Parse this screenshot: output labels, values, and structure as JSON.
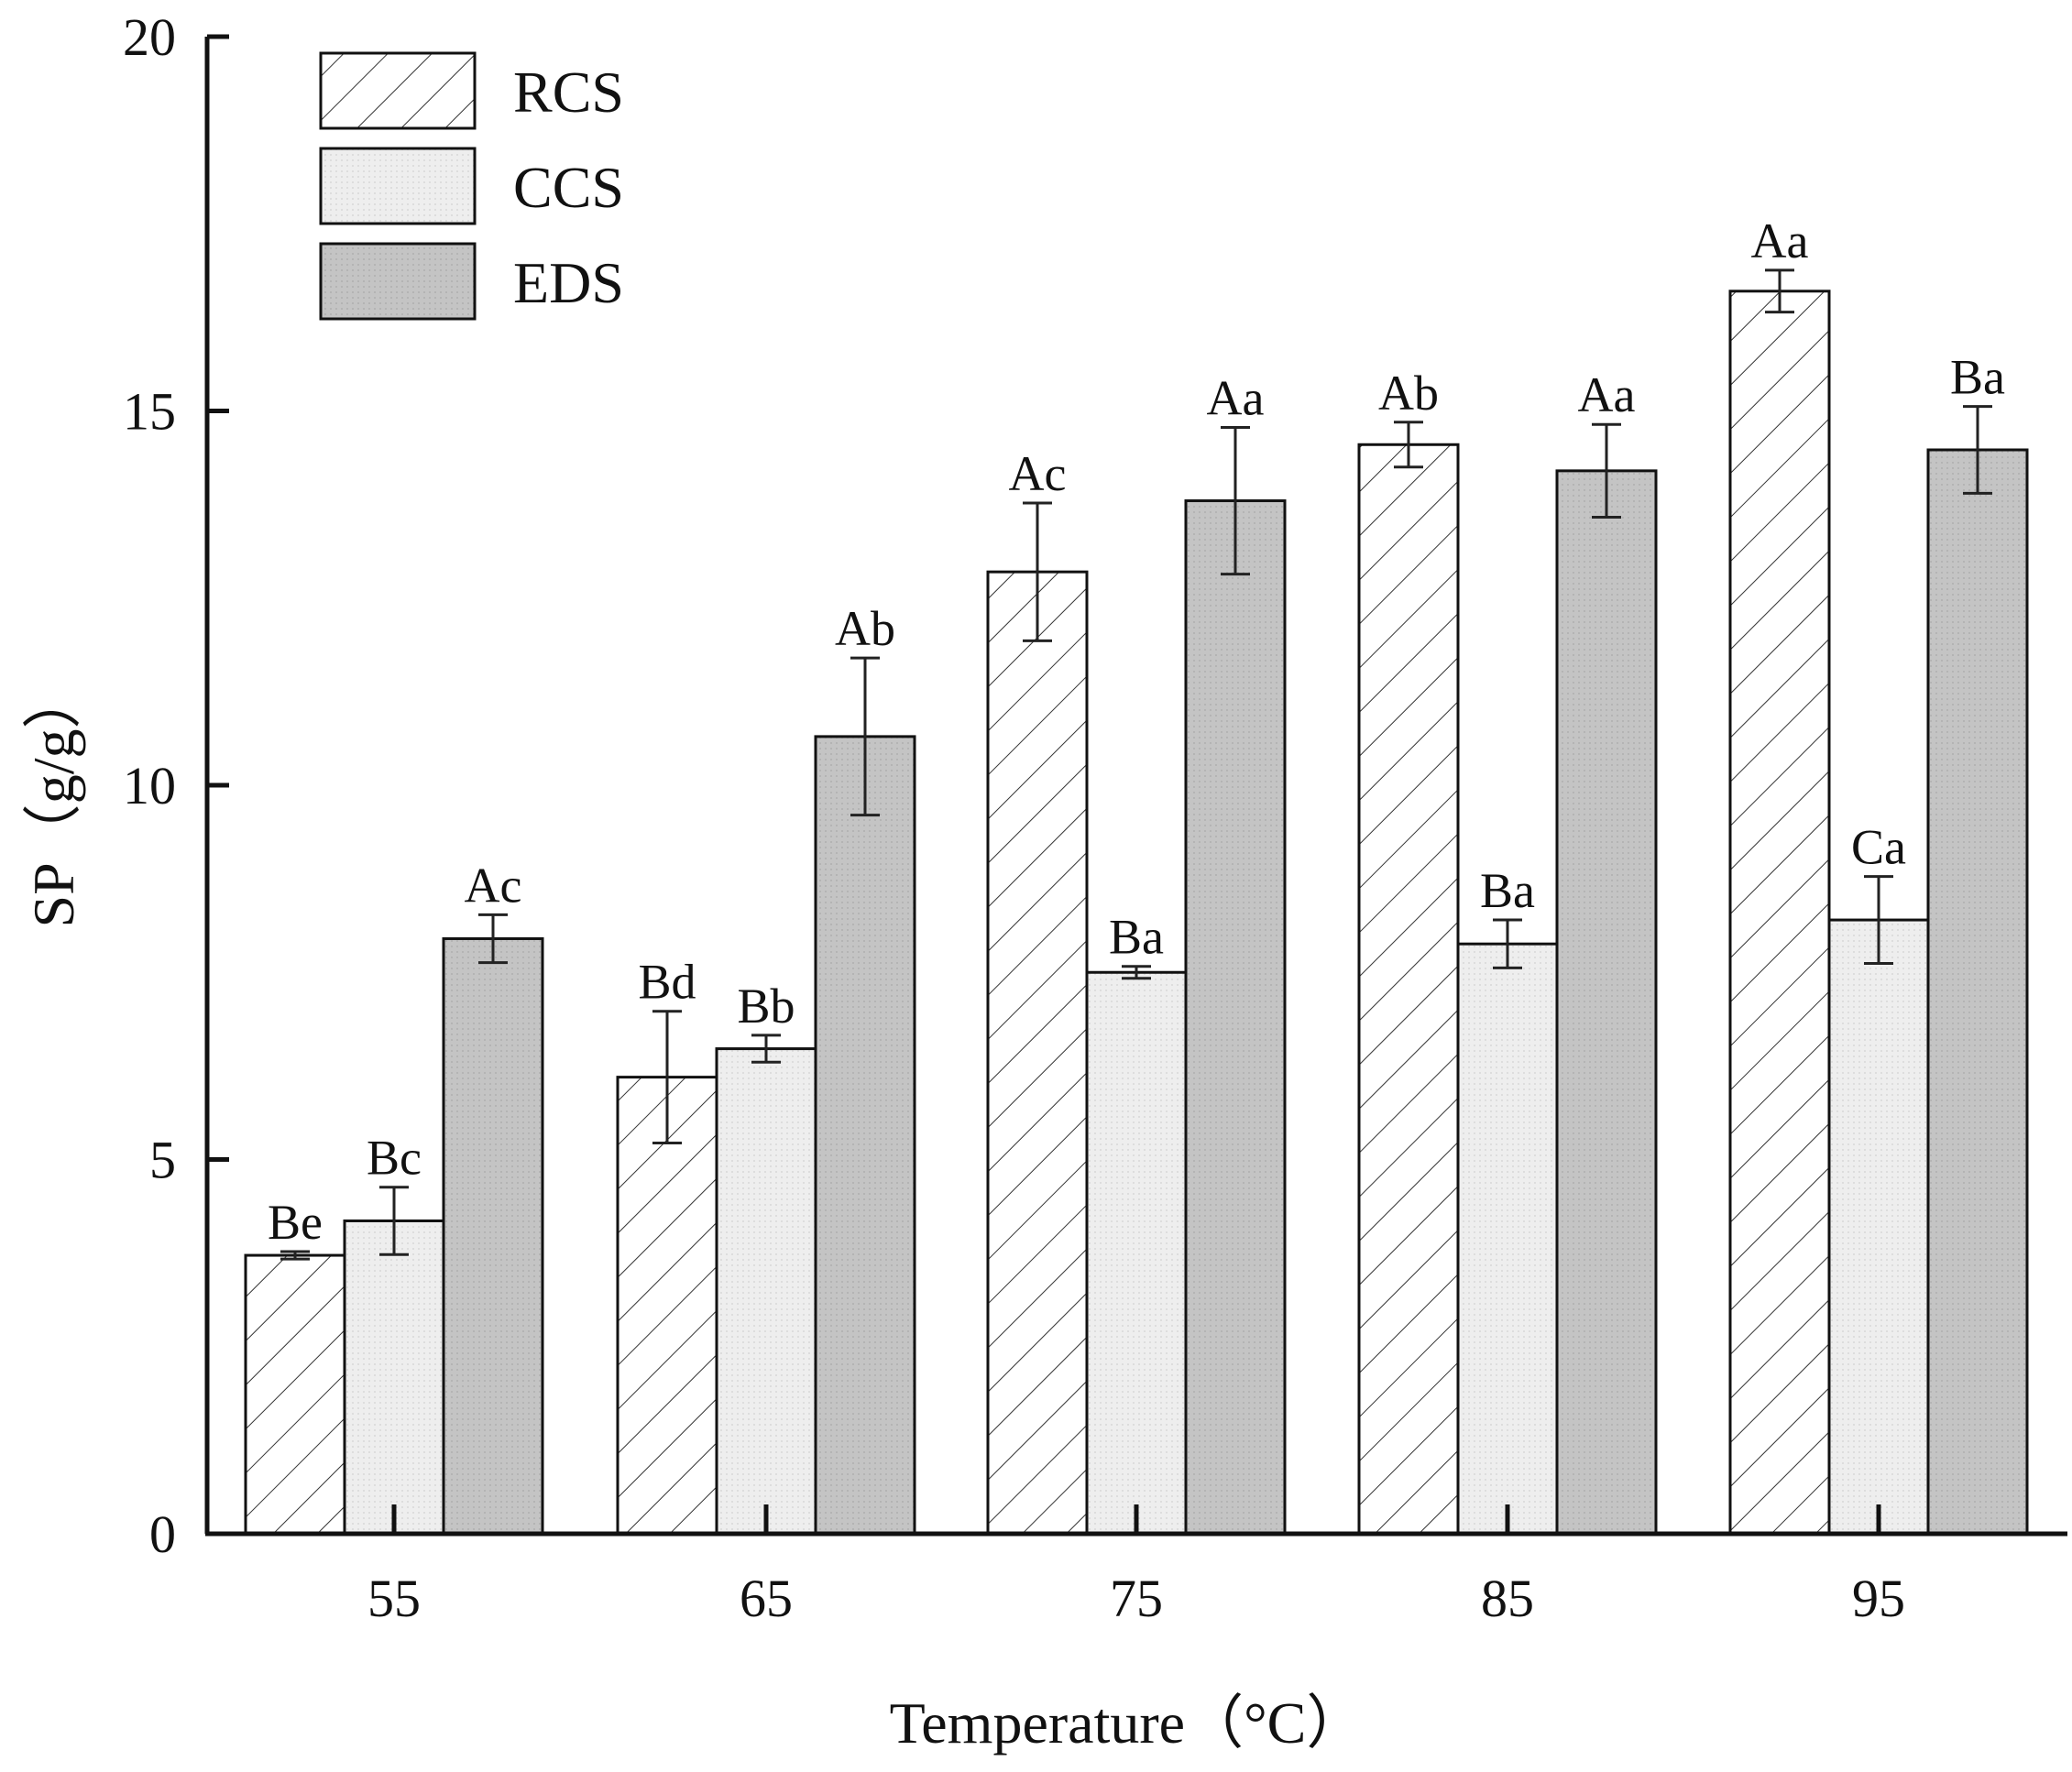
{
  "chart_data": {
    "type": "bar",
    "title": "",
    "xlabel": "Temperature（°C）",
    "ylabel": "SP（g/g）",
    "ylim": [
      0,
      20
    ],
    "yticks": [
      "0",
      "5",
      "10",
      "15",
      "20"
    ],
    "grid": false,
    "legend_position": "top-left",
    "categories": [
      "55",
      "65",
      "75",
      "85",
      "95"
    ],
    "series": [
      {
        "name": "RCS",
        "pattern": "hatched",
        "fill": "#ffffff",
        "values": [
          3.72,
          6.1,
          12.85,
          14.55,
          16.6
        ],
        "errors": [
          0.05,
          0.88,
          0.92,
          0.3,
          0.28
        ],
        "labels": [
          "Be",
          "Bd",
          "Ac",
          "Ab",
          "Aa"
        ]
      },
      {
        "name": "CCS",
        "pattern": "light",
        "fill": "#ededed",
        "values": [
          4.18,
          6.48,
          7.5,
          7.88,
          8.2
        ],
        "errors": [
          0.45,
          0.18,
          0.08,
          0.32,
          0.58
        ],
        "labels": [
          "Bc",
          "Bb",
          "Ba",
          "Ba",
          "Ca"
        ]
      },
      {
        "name": "EDS",
        "pattern": "dark",
        "fill": "#c2c2c2",
        "values": [
          7.95,
          10.65,
          13.8,
          14.2,
          14.48
        ],
        "errors": [
          0.32,
          1.05,
          0.98,
          0.62,
          0.58
        ],
        "labels": [
          "Ac",
          "Ab",
          "Aa",
          "Aa",
          "Ba"
        ]
      }
    ]
  }
}
